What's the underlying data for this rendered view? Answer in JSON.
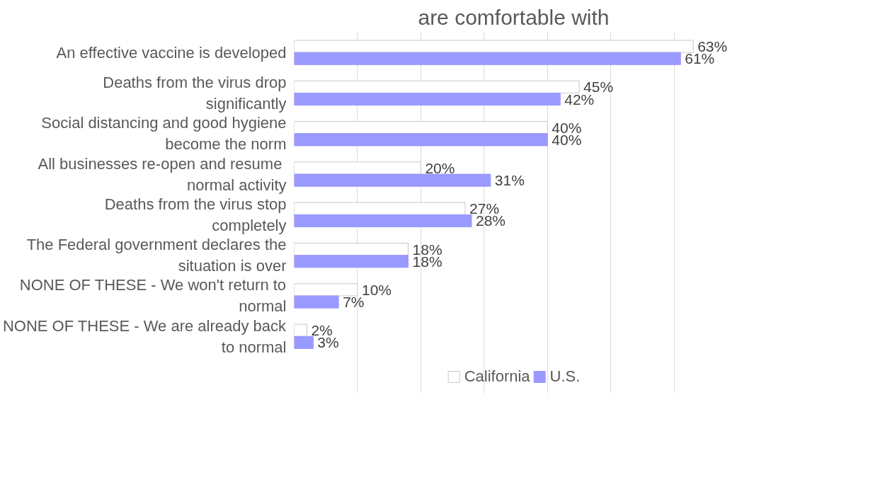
{
  "chart_data": {
    "type": "bar",
    "orientation": "horizontal",
    "title": "are comfortable with",
    "categories": [
      "An effective vaccine is developed",
      "Deaths from the virus drop significantly",
      "Social distancing and good hygiene become the norm",
      "All businesses re-open  and resume normal activity",
      "Deaths from the virus stop completely",
      "The Federal government declares the situation is over",
      "NONE OF THESE - We won't return to normal",
      "NONE OF THESE - We are already back to normal"
    ],
    "series": [
      {
        "name": "California",
        "color": "#ffffff",
        "values": [
          63,
          45,
          40,
          20,
          27,
          18,
          10,
          2
        ],
        "value_labels": [
          "63%",
          "45%",
          "40%",
          "20%",
          "27%",
          "18%",
          "10%",
          "2%"
        ]
      },
      {
        "name": "U.S.",
        "color": "#9999ff",
        "values": [
          61,
          42,
          40,
          31,
          28,
          18,
          7,
          3
        ],
        "value_labels": [
          "61%",
          "42%",
          "40%",
          "31%",
          "28%",
          "18%",
          "7%",
          "3%"
        ]
      }
    ],
    "tick_labels": "y",
    "grid": "x",
    "legend": "bottom"
  }
}
